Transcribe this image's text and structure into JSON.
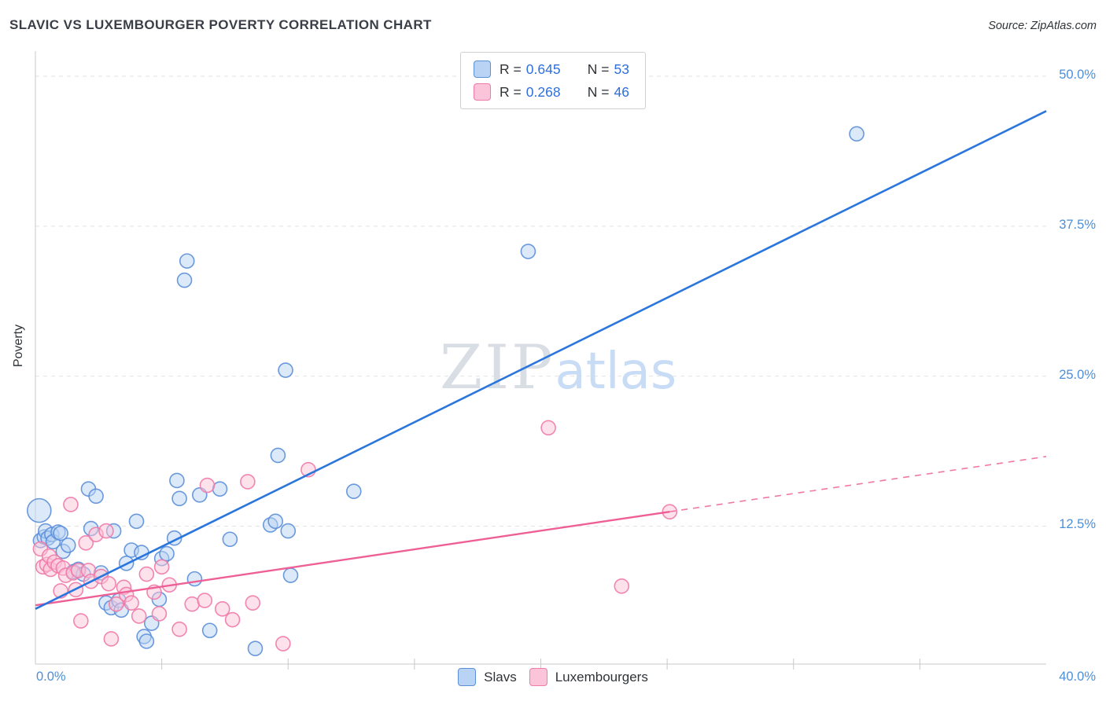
{
  "header": {
    "title": "SLAVIC VS LUXEMBOURGER POVERTY CORRELATION CHART",
    "source": "Source: ZipAtlas.com"
  },
  "correlation_legend": {
    "rows": [
      {
        "series": "Slavs",
        "r_label": "R =",
        "r_value": "0.645",
        "n_label": "N =",
        "n_value": "53"
      },
      {
        "series": "Luxembourgers",
        "r_label": "R =",
        "r_value": "0.268",
        "n_label": "N =",
        "n_value": "46"
      }
    ]
  },
  "axes": {
    "y_label": "Poverty",
    "y_tick_labels": [
      "50.0%",
      "37.5%",
      "25.0%",
      "12.5%"
    ],
    "y_tick_values": [
      50,
      37.5,
      25,
      12.5
    ],
    "x_min_label": "0.0%",
    "x_max_label": "40.0%"
  },
  "bottom_legend": {
    "items": [
      {
        "label": "Slavs"
      },
      {
        "label": "Luxembourgers"
      }
    ]
  },
  "watermark": {
    "part1": "ZIP",
    "part2": "atlas"
  },
  "colors": {
    "tick_label_blue": "#4d8fd8",
    "grid": "#e2e2e2",
    "spine": "#c8c8c8",
    "title_text": "#3a3f47",
    "value_blue": "#2e6fdb",
    "slavs_stroke": "#5b8fd9",
    "slavs_fill": "#b9d3f4",
    "slavs_line": "#2a76dd",
    "lux_stroke": "#f07aa8",
    "lux_fill": "#fbc4d8",
    "lux_line": "#ee5f96",
    "watermark_gray": "#d9dde4",
    "watermark_blue": "#c8dcf6"
  },
  "chart_data": {
    "type": "scatter",
    "title": "SLAVIC VS LUXEMBOURGER POVERTY CORRELATION CHART",
    "x_range": [
      0,
      40
    ],
    "y_range": [
      1,
      52.1
    ],
    "y_gridlines": [
      12.5,
      25,
      37.5,
      50
    ],
    "x_ticks": [
      5,
      10,
      15,
      20,
      25,
      30,
      35
    ],
    "legend_position": "top-center",
    "series": [
      {
        "name": "Slavs",
        "r": 0.645,
        "n": 53,
        "marker": {
          "stroke": "#5b8fd9",
          "fill": "#b9d3f4",
          "fill_opacity": 0.5,
          "radius": 9
        },
        "points": [
          [
            0.15,
            13.8,
            15
          ],
          [
            0.2,
            11.3
          ],
          [
            0.35,
            11.6
          ],
          [
            0.4,
            12.1
          ],
          [
            0.5,
            11.5
          ],
          [
            0.65,
            11.8
          ],
          [
            0.7,
            11.2
          ],
          [
            0.9,
            12.0
          ],
          [
            1.0,
            11.9
          ],
          [
            1.1,
            10.4
          ],
          [
            1.3,
            10.9
          ],
          [
            1.5,
            8.7
          ],
          [
            1.7,
            8.9
          ],
          [
            1.9,
            8.5
          ],
          [
            2.1,
            15.6
          ],
          [
            2.2,
            12.3
          ],
          [
            2.4,
            15.0
          ],
          [
            2.6,
            8.6
          ],
          [
            2.8,
            6.1
          ],
          [
            3.0,
            5.7
          ],
          [
            3.1,
            12.1
          ],
          [
            3.3,
            6.3
          ],
          [
            3.4,
            5.5
          ],
          [
            3.6,
            9.4
          ],
          [
            3.8,
            10.5
          ],
          [
            4.0,
            12.9
          ],
          [
            4.2,
            10.3
          ],
          [
            4.3,
            3.3
          ],
          [
            4.4,
            2.9
          ],
          [
            4.6,
            4.4
          ],
          [
            4.9,
            6.4
          ],
          [
            5.0,
            9.8
          ],
          [
            5.2,
            10.2
          ],
          [
            5.5,
            11.5
          ],
          [
            5.6,
            16.3
          ],
          [
            5.7,
            14.8
          ],
          [
            5.9,
            33.0
          ],
          [
            6.0,
            34.6
          ],
          [
            6.3,
            8.1
          ],
          [
            6.5,
            15.1
          ],
          [
            6.9,
            3.8
          ],
          [
            7.3,
            15.6
          ],
          [
            7.7,
            11.4
          ],
          [
            8.7,
            2.3
          ],
          [
            9.3,
            12.6
          ],
          [
            9.5,
            12.9
          ],
          [
            9.6,
            18.4
          ],
          [
            9.9,
            25.5
          ],
          [
            10.0,
            12.1
          ],
          [
            10.1,
            8.4
          ],
          [
            12.6,
            15.4
          ],
          [
            19.5,
            35.4
          ],
          [
            32.5,
            45.2
          ]
        ],
        "trend": {
          "x1": 0,
          "y1": 5.6,
          "x2": 40,
          "y2": 47.1,
          "color": "#2a76dd",
          "style": "solid"
        }
      },
      {
        "name": "Luxembourgers",
        "r": 0.268,
        "n": 46,
        "marker": {
          "stroke": "#f07aa8",
          "fill": "#fbc4d8",
          "fill_opacity": 0.5,
          "radius": 9
        },
        "points": [
          [
            0.2,
            10.6
          ],
          [
            0.3,
            9.1
          ],
          [
            0.45,
            9.3
          ],
          [
            0.55,
            10.0
          ],
          [
            0.6,
            8.9
          ],
          [
            0.75,
            9.5
          ],
          [
            0.9,
            9.2
          ],
          [
            1.0,
            7.1
          ],
          [
            1.1,
            9.0
          ],
          [
            1.2,
            8.4
          ],
          [
            1.4,
            14.3
          ],
          [
            1.5,
            8.6
          ],
          [
            1.6,
            7.2
          ],
          [
            1.7,
            8.8
          ],
          [
            1.8,
            4.6
          ],
          [
            2.0,
            11.1
          ],
          [
            2.1,
            8.8
          ],
          [
            2.2,
            7.9
          ],
          [
            2.4,
            11.8
          ],
          [
            2.6,
            8.3
          ],
          [
            2.8,
            12.1
          ],
          [
            2.9,
            7.7
          ],
          [
            3.0,
            3.1
          ],
          [
            3.2,
            6.0
          ],
          [
            3.5,
            7.4
          ],
          [
            3.6,
            6.8
          ],
          [
            3.8,
            6.1
          ],
          [
            4.1,
            5.0
          ],
          [
            4.4,
            8.5
          ],
          [
            4.7,
            7.0
          ],
          [
            4.9,
            5.2
          ],
          [
            5.0,
            9.1
          ],
          [
            5.3,
            7.6
          ],
          [
            5.7,
            3.9
          ],
          [
            6.2,
            6.0
          ],
          [
            6.7,
            6.3
          ],
          [
            6.8,
            15.9
          ],
          [
            7.4,
            5.6
          ],
          [
            7.8,
            4.7
          ],
          [
            8.4,
            16.2
          ],
          [
            8.6,
            6.1
          ],
          [
            9.8,
            2.7
          ],
          [
            10.8,
            17.2
          ],
          [
            20.3,
            20.7
          ],
          [
            23.2,
            7.5
          ],
          [
            25.1,
            13.7
          ]
        ],
        "trend": {
          "x1": 0,
          "y1": 5.9,
          "x2": 25.1,
          "y2": 13.7,
          "color": "#ee5f96",
          "style": "solid",
          "extension": {
            "x2": 40,
            "y2": 18.3,
            "style": "dashed"
          }
        }
      }
    ]
  }
}
